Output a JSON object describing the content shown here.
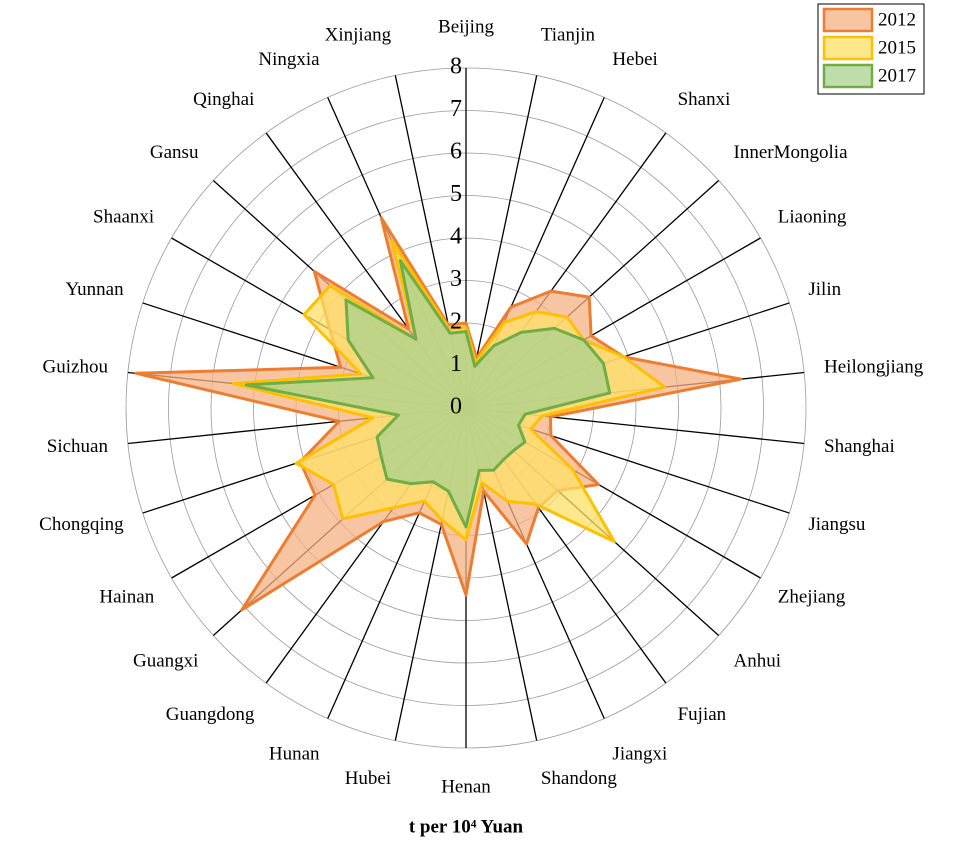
{
  "chart_data": {
    "type": "radar",
    "axis_label": "t per 10⁴ Yuan",
    "categories": [
      "Beijing",
      "Tianjin",
      "Hebei",
      "Shanxi",
      "InnerMongolia",
      "Liaoning",
      "Jilin",
      "Heilongjiang",
      "Shanghai",
      "Jiangsu",
      "Zhejiang",
      "Anhui",
      "Fujian",
      "Jiangxi",
      "Shandong",
      "Henan",
      "Hubei",
      "Hunan",
      "Guangdong",
      "Guangxi",
      "Hainan",
      "Chongqing",
      "Sichuan",
      "Guizhou",
      "Yunnan",
      "Shaanxi",
      "Gansu",
      "Qinghai",
      "Ningxia",
      "Xinjiang"
    ],
    "ylim": [
      0,
      8
    ],
    "yticks": [
      0,
      1,
      2,
      3,
      4,
      5,
      6,
      7,
      8
    ],
    "grid": true,
    "legend": "top-right",
    "series": [
      {
        "name": "2012",
        "color": "#ed7d31",
        "fill": "#f4b183",
        "values": [
          2.0,
          1.2,
          2.6,
          3.4,
          3.9,
          3.4,
          3.9,
          6.5,
          2.0,
          2.1,
          3.6,
          2.9,
          2.9,
          3.5,
          2.0,
          4.4,
          2.8,
          2.7,
          3.3,
          7.1,
          4.1,
          4.1,
          3.0,
          7.8,
          3.1,
          3.7,
          4.8,
          2.3,
          4.9,
          2.0
        ]
      },
      {
        "name": "2015",
        "color": "#ffc000",
        "fill": "#ffe066",
        "values": [
          1.9,
          1.1,
          2.2,
          2.8,
          3.2,
          3.2,
          3.9,
          4.7,
          1.8,
          1.6,
          2.9,
          4.7,
          2.8,
          2.4,
          1.8,
          3.1,
          2.7,
          2.4,
          2.9,
          3.9,
          3.6,
          4.2,
          2.2,
          5.5,
          2.6,
          4.4,
          4.3,
          2.0,
          4.3,
          1.9
        ]
      },
      {
        "name": "2017",
        "color": "#70ad47",
        "fill": "#a9d18e",
        "values": [
          1.8,
          1.0,
          1.6,
          2.2,
          2.8,
          3.2,
          3.4,
          3.4,
          1.4,
          1.3,
          1.6,
          1.5,
          1.5,
          1.6,
          1.5,
          2.8,
          2.0,
          1.9,
          2.2,
          2.5,
          2.3,
          2.2,
          1.6,
          5.2,
          2.3,
          3.2,
          3.8,
          2.0,
          3.8,
          1.8
        ]
      }
    ]
  }
}
